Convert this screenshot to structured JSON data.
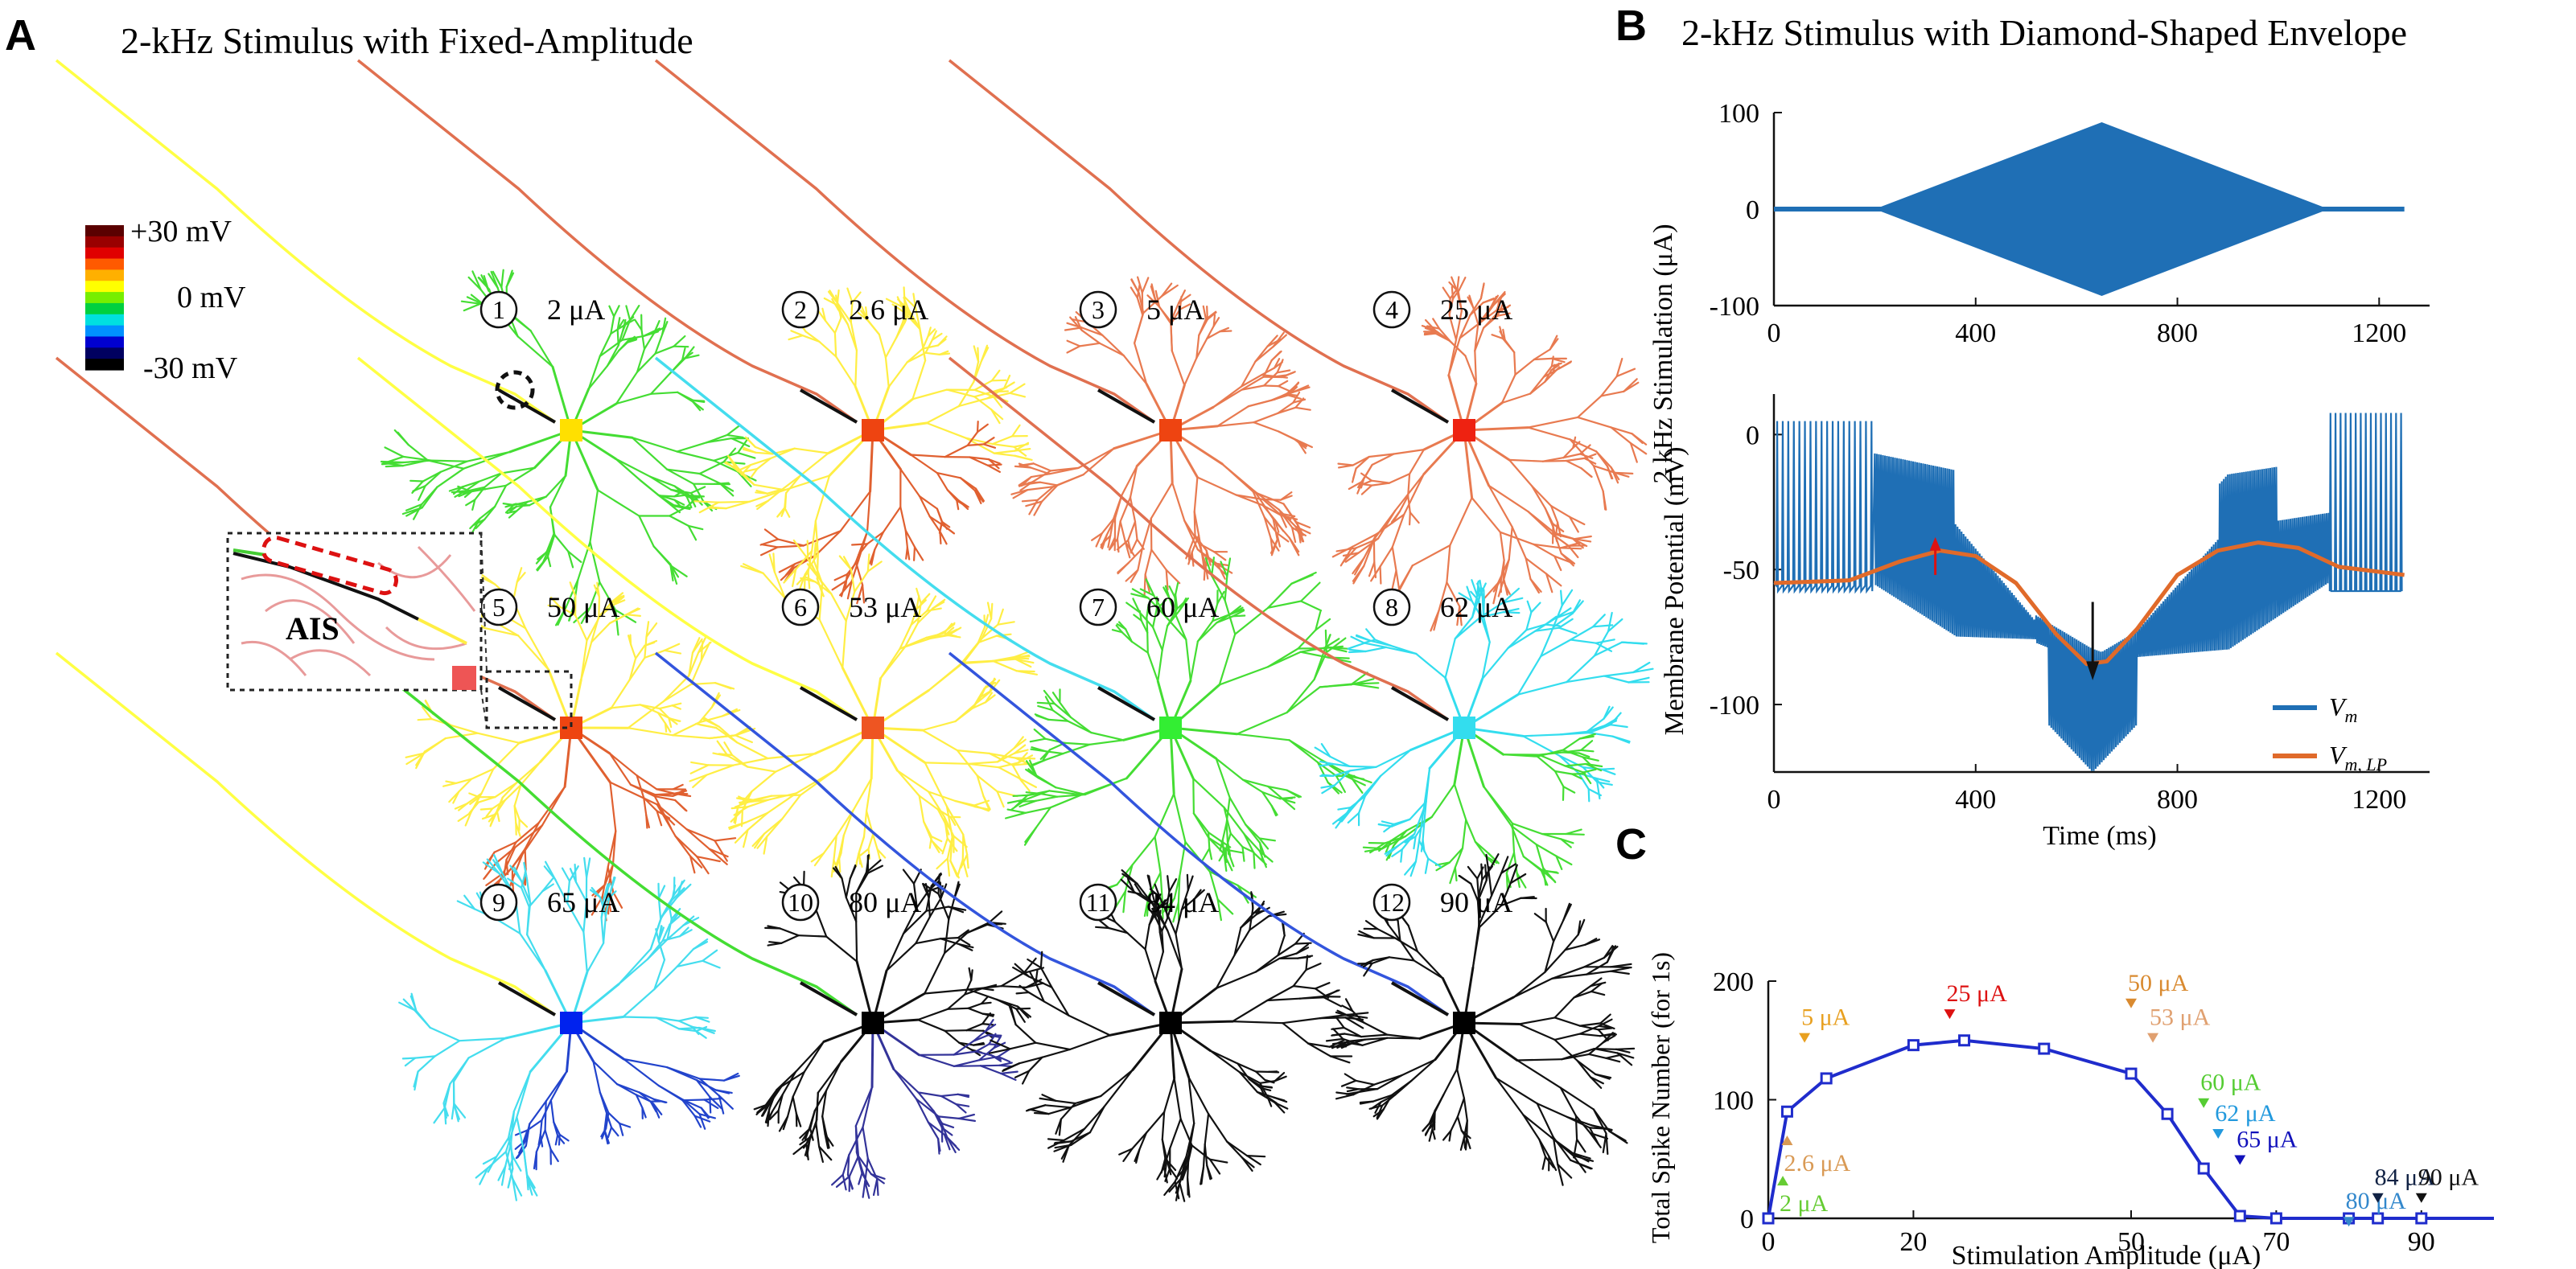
{
  "panelA": {
    "letter": "A",
    "title": "2-kHz Stimulus with Fixed-Amplitude",
    "colorbar": {
      "top_label": "+30 mV",
      "mid_label": "0 mV",
      "bottom_label": "-30 mV",
      "colors": [
        "#5a0000",
        "#990000",
        "#e00000",
        "#ff5a00",
        "#ffb000",
        "#ffff00",
        "#77ee00",
        "#00d040",
        "#00e0e0",
        "#0090ff",
        "#0000d0",
        "#000060",
        "#000000"
      ]
    },
    "inset_label": "AIS",
    "cells": [
      {
        "num": "1",
        "amp": "2 μA",
        "axon": "#ffff44",
        "soma": "#ffe000",
        "arbor": "#44dd33",
        "arbor2": "#44dd33"
      },
      {
        "num": "2",
        "amp": "2.6 μA",
        "axon": "#e07050",
        "soma": "#ee4411",
        "arbor": "#ffee44",
        "arbor2": "#e06030"
      },
      {
        "num": "3",
        "amp": "5 μA",
        "axon": "#e07050",
        "soma": "#ee4411",
        "arbor": "#e87a50",
        "arbor2": "#e87a50"
      },
      {
        "num": "4",
        "amp": "25 μA",
        "axon": "#e07050",
        "soma": "#ee2211",
        "arbor": "#e87a50",
        "arbor2": "#e87a50"
      },
      {
        "num": "5",
        "amp": "50 μA",
        "axon": "#e07050",
        "soma": "#ee4411",
        "arbor": "#ffee44",
        "arbor2": "#e06030"
      },
      {
        "num": "6",
        "amp": "53 μA",
        "axon": "#ffff44",
        "soma": "#ee5522",
        "arbor": "#ffee44",
        "arbor2": "#ffee44"
      },
      {
        "num": "7",
        "amp": "60 μA",
        "axon": "#44ddee",
        "soma": "#33ee33",
        "arbor": "#44dd33",
        "arbor2": "#44dd33"
      },
      {
        "num": "8",
        "amp": "62 μA",
        "axon": "#e07050",
        "soma": "#33ddee",
        "arbor": "#33ddee",
        "arbor2": "#44dd33"
      },
      {
        "num": "9",
        "amp": "65 μA",
        "axon": "#ffff44",
        "soma": "#0022ee",
        "arbor": "#44ddee",
        "arbor2": "#2244cc"
      },
      {
        "num": "10",
        "amp": "80 μA",
        "axon": "#44dd33",
        "soma": "#000000",
        "arbor": "#111111",
        "arbor2": "#333399"
      },
      {
        "num": "11",
        "amp": "84 μA",
        "axon": "#3355dd",
        "soma": "#000000",
        "arbor": "#111111",
        "arbor2": "#111111"
      },
      {
        "num": "12",
        "amp": "90 μA",
        "axon": "#3355dd",
        "soma": "#000000",
        "arbor": "#111111",
        "arbor2": "#111111"
      }
    ]
  },
  "panelB": {
    "letter": "B",
    "title": "2-kHz Stimulus with Diamond-Shaped Envelope",
    "top_plot": {
      "ylabel": "2 kHz Stimulation (μA)",
      "yticks": [
        "100",
        "0",
        "-100"
      ],
      "ytick_values": [
        100,
        0,
        -100
      ],
      "xticks": [
        "0",
        "400",
        "800",
        "1200"
      ],
      "xtick_values": [
        0,
        400,
        800,
        1200
      ],
      "xlim": [
        0,
        1300
      ],
      "ylim": [
        -100,
        100
      ],
      "envelope": {
        "start_ms": 200,
        "peak_ms": 650,
        "end_ms": 1100,
        "peak_uA": 90,
        "end_ms_trace": 1250
      },
      "color": "#1f6fb5"
    },
    "bottom_plot": {
      "ylabel": "Membrane Potential (mV)",
      "xlabel": "Time (ms)",
      "yticks": [
        "0",
        "-50",
        "-100"
      ],
      "ytick_values": [
        0,
        -50,
        -100
      ],
      "xticks": [
        "0",
        "400",
        "800",
        "1200"
      ],
      "xtick_values": [
        0,
        400,
        800,
        1200
      ],
      "xlim": [
        0,
        1300
      ],
      "ylim": [
        -125,
        15
      ],
      "legend": {
        "vm": "V",
        "vm_sub": "m",
        "vmlp": "V",
        "vmlp_sub": "m, LP"
      },
      "vm_color": "#1f6fb5",
      "lp_color": "#e06a2a"
    }
  },
  "panelC": {
    "letter": "C",
    "ylabel": "Total Spike Number (for 1s)",
    "xlabel": "Stimulation Amplitude (μA)",
    "yticks": [
      "0",
      "100",
      "200"
    ],
    "ytick_values": [
      0,
      100,
      200
    ],
    "xticks": [
      "0",
      "20",
      "50",
      "70",
      "90"
    ],
    "xtick_values": [
      0,
      20,
      50,
      70,
      90
    ],
    "xlim": [
      0,
      100
    ],
    "ylim": [
      0,
      200
    ],
    "chart_data": {
      "type": "line",
      "x": [
        0,
        2.6,
        8,
        20,
        27,
        38,
        50,
        55,
        60,
        65,
        70,
        80,
        84,
        90,
        100
      ],
      "y": [
        0,
        90,
        118,
        146,
        150,
        143,
        122,
        88,
        42,
        2,
        0,
        0,
        0,
        0,
        0
      ],
      "color": "#1f2ccc"
    },
    "annotations": [
      {
        "label": "2 μA",
        "x": 2,
        "dir": "up",
        "color": "#66cc33",
        "ty": 6
      },
      {
        "label": "2.6 μA",
        "x": 2.6,
        "dir": "up",
        "color": "#d99a55",
        "ty": 40
      },
      {
        "label": "5 μA",
        "x": 5,
        "dir": "down",
        "color": "#e8a020",
        "ty": 163
      },
      {
        "label": "25 μA",
        "x": 25,
        "dir": "down",
        "color": "#dd1111",
        "ty": 183
      },
      {
        "label": "50 μA",
        "x": 50,
        "dir": "down",
        "color": "#d98a30",
        "ty": 192
      },
      {
        "label": "53 μA",
        "x": 53,
        "dir": "down",
        "color": "#e0a070",
        "ty": 163
      },
      {
        "label": "60 μA",
        "x": 60,
        "dir": "down",
        "color": "#55cc33",
        "ty": 108
      },
      {
        "label": "62 μA",
        "x": 62,
        "dir": "down",
        "color": "#2299dd",
        "ty": 82
      },
      {
        "label": "65 μA",
        "x": 65,
        "dir": "down",
        "color": "#1111bb",
        "ty": 60
      },
      {
        "label": "80 μA",
        "x": 80,
        "dir": "down",
        "color": "#3388cc",
        "ty": 8
      },
      {
        "label": "84 μA",
        "x": 84,
        "dir": "down",
        "color": "#112244",
        "ty": 28
      },
      {
        "label": "90 μA",
        "x": 90,
        "dir": "down",
        "color": "#111111",
        "ty": 28
      }
    ]
  }
}
